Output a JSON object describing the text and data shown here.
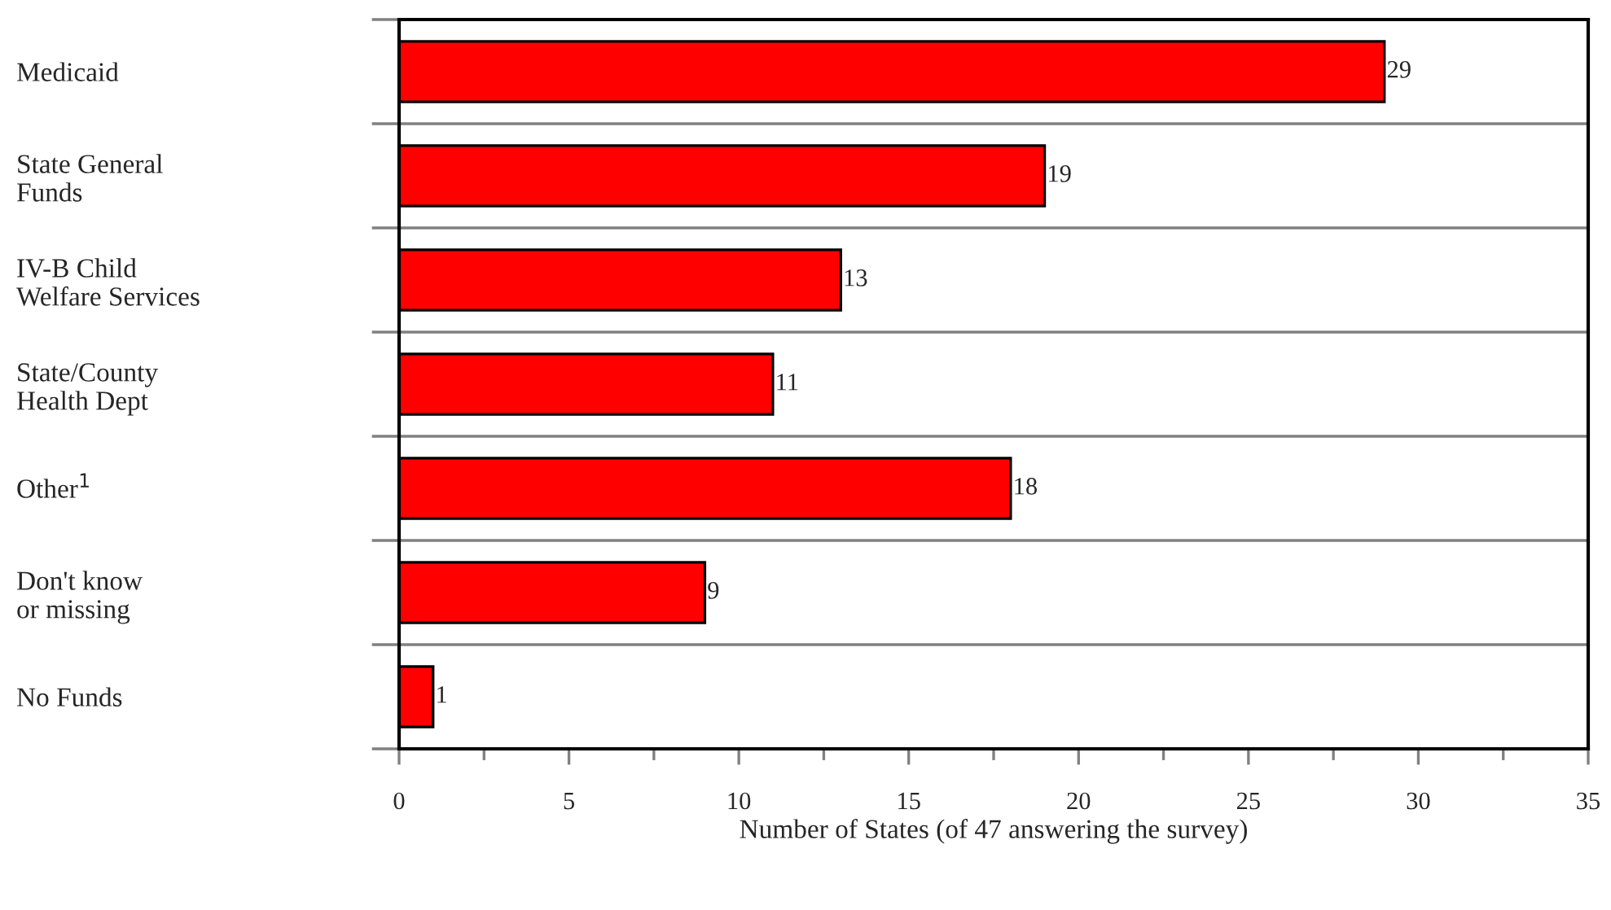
{
  "chart_data": {
    "type": "bar",
    "orientation": "horizontal",
    "xlabel": "Number of States (of 47 answering the survey)",
    "categories": [
      "Medicaid",
      "State General\nFunds",
      "IV-B Child\nWelfare Services",
      "State/County\nHealth Dept",
      "Other$^{1}$",
      "Don't know\nor missing",
      "No Funds"
    ],
    "values": [
      29,
      19,
      13,
      11,
      18,
      9,
      1
    ],
    "color": "#ff0000",
    "data_labels": true,
    "xlim": [
      0,
      35
    ],
    "xticks": [
      0,
      {
        "value": 2.5,
        "label": null
      },
      5,
      {
        "value": 7.5,
        "label": null
      },
      10,
      {
        "value": 12.5,
        "label": null
      },
      15,
      {
        "value": 17.5,
        "label": null
      },
      20,
      {
        "value": 22.5,
        "label": null
      },
      25,
      {
        "value": 27.5,
        "label": null
      },
      30,
      {
        "value": 32.5,
        "label": null
      },
      35
    ],
    "grid": "y",
    "legend": false
  }
}
